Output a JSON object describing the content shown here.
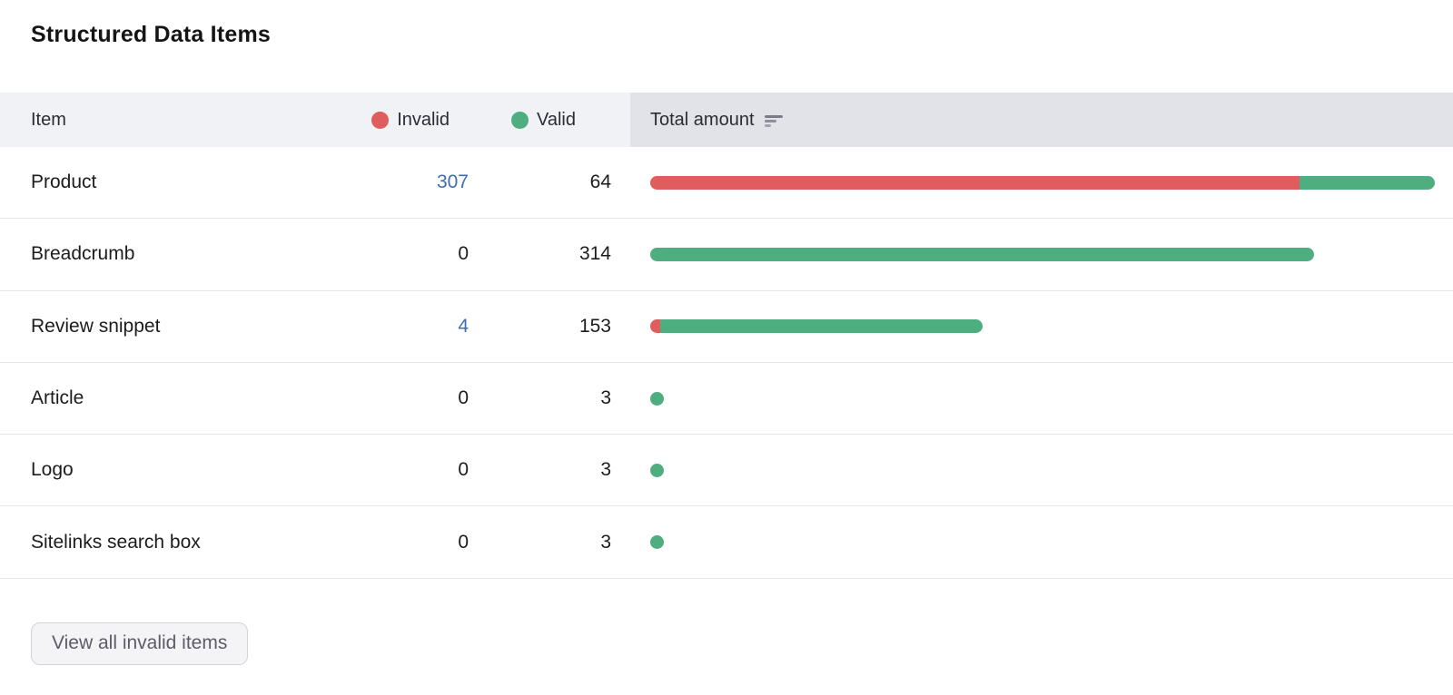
{
  "title": "Structured Data Items",
  "table": {
    "columns": {
      "item": "Item",
      "invalid": "Invalid",
      "valid": "Valid",
      "amount": "Total amount"
    },
    "rows": [
      {
        "item": "Product",
        "invalid": 307,
        "valid": 64
      },
      {
        "item": "Breadcrumb",
        "invalid": 0,
        "valid": 314
      },
      {
        "item": "Review snippet",
        "invalid": 4,
        "valid": 153
      },
      {
        "item": "Article",
        "invalid": 0,
        "valid": 3
      },
      {
        "item": "Logo",
        "invalid": 0,
        "valid": 3
      },
      {
        "item": "Sitelinks search box",
        "invalid": 0,
        "valid": 3
      }
    ]
  },
  "footer": {
    "view_all_button": "View all invalid items"
  },
  "colors": {
    "invalid": "#e05d5d",
    "valid": "#4fae80",
    "count_link": "#3e6db4",
    "header_bg": "#f1f2f5",
    "amount_header_bg": "#e2e2e9"
  },
  "icons": {
    "sort": "sort-descending-icon",
    "invalid_legend": "red-dot-icon",
    "valid_legend": "green-dot-icon"
  }
}
